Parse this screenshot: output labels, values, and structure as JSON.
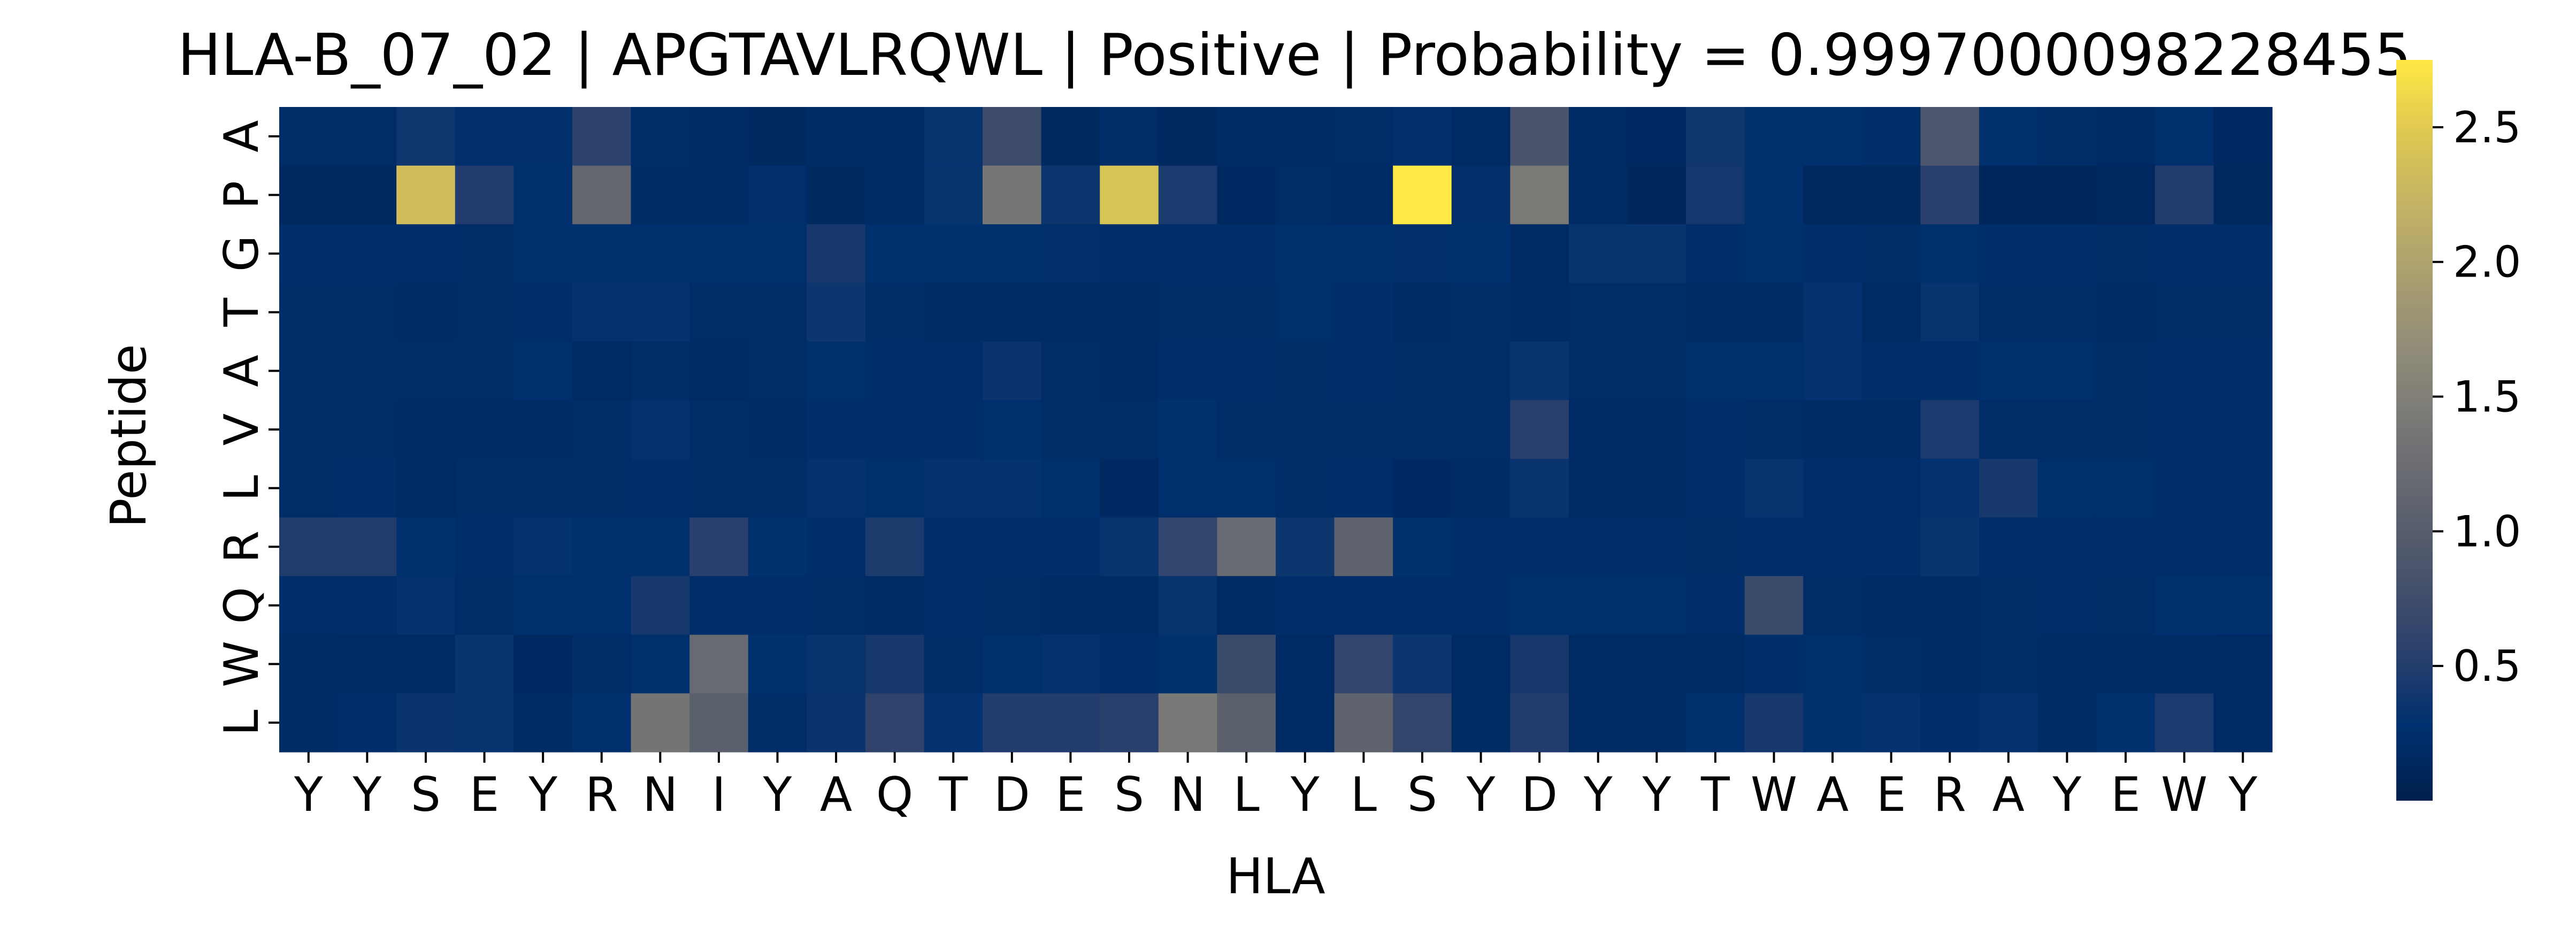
{
  "chart_data": {
    "type": "heatmap",
    "title": "HLA-B_07_02 | APGTAVLRQWL | Positive | Probability = 0.9997000098228455",
    "xlabel": "HLA",
    "ylabel": "Peptide",
    "x_categories": [
      "Y",
      "Y",
      "S",
      "E",
      "Y",
      "R",
      "N",
      "I",
      "Y",
      "A",
      "Q",
      "T",
      "D",
      "E",
      "S",
      "N",
      "L",
      "Y",
      "L",
      "S",
      "Y",
      "D",
      "Y",
      "Y",
      "T",
      "W",
      "A",
      "E",
      "R",
      "A",
      "Y",
      "E",
      "W",
      "Y"
    ],
    "y_categories": [
      "A",
      "P",
      "G",
      "T",
      "A",
      "V",
      "L",
      "R",
      "Q",
      "W",
      "L"
    ],
    "colormap": "cividis",
    "colorbar": {
      "min": 0.0,
      "max": 2.75,
      "ticks": [
        0.5,
        1.0,
        1.5,
        2.0,
        2.5
      ],
      "tick_labels": [
        "0.5",
        "1.0",
        "1.5",
        "2.0",
        "2.5"
      ]
    },
    "values": [
      [
        0.22,
        0.22,
        0.38,
        0.25,
        0.25,
        0.58,
        0.22,
        0.18,
        0.15,
        0.2,
        0.18,
        0.32,
        0.72,
        0.15,
        0.22,
        0.15,
        0.2,
        0.2,
        0.22,
        0.25,
        0.18,
        0.85,
        0.18,
        0.16,
        0.38,
        0.26,
        0.26,
        0.24,
        0.88,
        0.28,
        0.22,
        0.18,
        0.28,
        0.16
      ],
      [
        0.15,
        0.15,
        2.35,
        0.5,
        0.28,
        1.15,
        0.2,
        0.2,
        0.25,
        0.15,
        0.2,
        0.32,
        1.38,
        0.36,
        2.42,
        0.45,
        0.16,
        0.22,
        0.18,
        2.75,
        0.25,
        1.42,
        0.18,
        0.12,
        0.4,
        0.28,
        0.15,
        0.15,
        0.55,
        0.12,
        0.12,
        0.14,
        0.5,
        0.15
      ],
      [
        0.24,
        0.24,
        0.24,
        0.22,
        0.26,
        0.26,
        0.26,
        0.28,
        0.26,
        0.42,
        0.28,
        0.26,
        0.26,
        0.25,
        0.24,
        0.24,
        0.24,
        0.26,
        0.26,
        0.25,
        0.28,
        0.18,
        0.32,
        0.32,
        0.24,
        0.26,
        0.24,
        0.22,
        0.26,
        0.24,
        0.24,
        0.22,
        0.24,
        0.24
      ],
      [
        0.22,
        0.22,
        0.2,
        0.22,
        0.24,
        0.3,
        0.3,
        0.22,
        0.22,
        0.36,
        0.22,
        0.2,
        0.2,
        0.2,
        0.2,
        0.22,
        0.22,
        0.26,
        0.24,
        0.2,
        0.22,
        0.2,
        0.22,
        0.22,
        0.2,
        0.2,
        0.3,
        0.18,
        0.32,
        0.22,
        0.22,
        0.2,
        0.22,
        0.22
      ],
      [
        0.22,
        0.22,
        0.22,
        0.22,
        0.26,
        0.18,
        0.22,
        0.18,
        0.22,
        0.26,
        0.24,
        0.24,
        0.35,
        0.22,
        0.2,
        0.24,
        0.24,
        0.22,
        0.24,
        0.22,
        0.22,
        0.34,
        0.22,
        0.22,
        0.26,
        0.26,
        0.3,
        0.24,
        0.24,
        0.26,
        0.26,
        0.22,
        0.24,
        0.24
      ],
      [
        0.22,
        0.22,
        0.2,
        0.2,
        0.2,
        0.22,
        0.3,
        0.22,
        0.2,
        0.24,
        0.24,
        0.24,
        0.26,
        0.22,
        0.22,
        0.28,
        0.22,
        0.22,
        0.22,
        0.22,
        0.22,
        0.55,
        0.2,
        0.2,
        0.24,
        0.22,
        0.2,
        0.2,
        0.45,
        0.22,
        0.22,
        0.22,
        0.24,
        0.24
      ],
      [
        0.22,
        0.24,
        0.18,
        0.22,
        0.22,
        0.22,
        0.24,
        0.22,
        0.22,
        0.3,
        0.26,
        0.3,
        0.3,
        0.26,
        0.16,
        0.26,
        0.26,
        0.22,
        0.24,
        0.16,
        0.2,
        0.34,
        0.18,
        0.18,
        0.24,
        0.32,
        0.24,
        0.24,
        0.3,
        0.42,
        0.26,
        0.26,
        0.24,
        0.24
      ],
      [
        0.48,
        0.48,
        0.28,
        0.24,
        0.3,
        0.26,
        0.28,
        0.55,
        0.28,
        0.24,
        0.46,
        0.24,
        0.24,
        0.24,
        0.32,
        0.62,
        1.2,
        0.36,
        1.1,
        0.28,
        0.24,
        0.24,
        0.24,
        0.24,
        0.22,
        0.24,
        0.24,
        0.24,
        0.34,
        0.24,
        0.24,
        0.24,
        0.24,
        0.24
      ],
      [
        0.24,
        0.24,
        0.3,
        0.22,
        0.26,
        0.26,
        0.42,
        0.24,
        0.24,
        0.22,
        0.2,
        0.24,
        0.22,
        0.2,
        0.2,
        0.32,
        0.18,
        0.24,
        0.24,
        0.24,
        0.24,
        0.26,
        0.26,
        0.26,
        0.24,
        0.7,
        0.22,
        0.2,
        0.2,
        0.22,
        0.24,
        0.22,
        0.28,
        0.28
      ],
      [
        0.2,
        0.18,
        0.18,
        0.34,
        0.16,
        0.22,
        0.26,
        1.2,
        0.28,
        0.32,
        0.42,
        0.22,
        0.26,
        0.3,
        0.24,
        0.28,
        0.7,
        0.18,
        0.62,
        0.36,
        0.18,
        0.42,
        0.18,
        0.18,
        0.2,
        0.24,
        0.26,
        0.22,
        0.2,
        0.22,
        0.2,
        0.2,
        0.2,
        0.18
      ],
      [
        0.2,
        0.24,
        0.35,
        0.32,
        0.2,
        0.26,
        1.35,
        1.05,
        0.22,
        0.35,
        0.6,
        0.3,
        0.5,
        0.5,
        0.55,
        1.4,
        1.05,
        0.18,
        1.1,
        0.62,
        0.2,
        0.5,
        0.18,
        0.18,
        0.28,
        0.42,
        0.28,
        0.3,
        0.24,
        0.3,
        0.2,
        0.28,
        0.45,
        0.18
      ]
    ]
  }
}
